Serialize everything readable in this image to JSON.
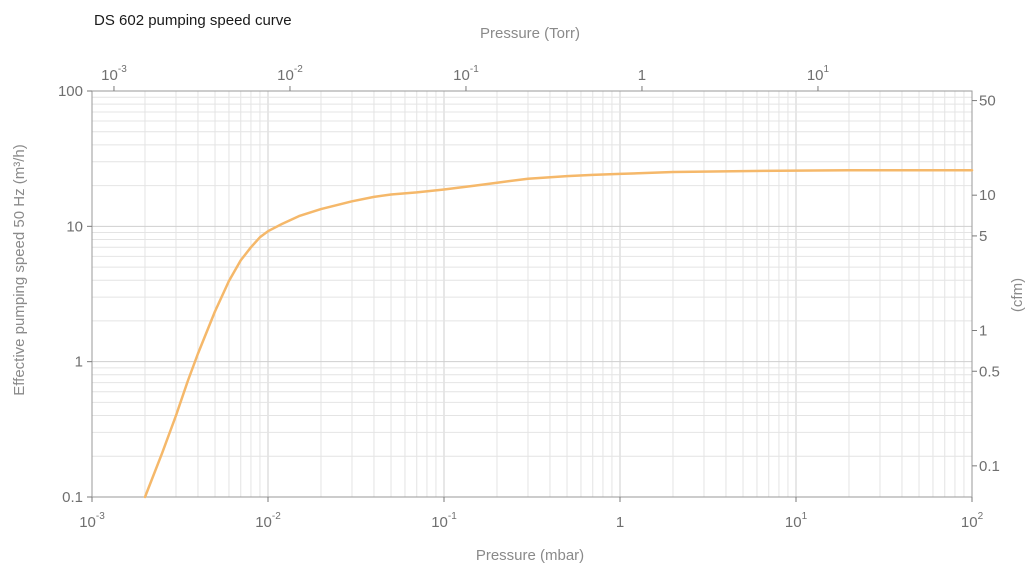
{
  "chart_data": {
    "type": "line",
    "title": "DS 602 pumping speed curve",
    "xlabel": "Pressure (mbar)",
    "x2label": "Pressure (Torr)",
    "ylabel": "Effective pumping speed  50 Hz (m³/h)",
    "y2label": "(cfm)",
    "xscale": "log",
    "yscale": "log",
    "xlim": [
      0.001,
      100
    ],
    "ylim": [
      0.1,
      100
    ],
    "grid": true,
    "x_ticks": [
      {
        "base": "10",
        "exp": "-3"
      },
      {
        "base": "10",
        "exp": "-2"
      },
      {
        "base": "10",
        "exp": "-1"
      },
      {
        "base": "1",
        "exp": ""
      },
      {
        "base": "10",
        "exp": "1"
      },
      {
        "base": "10",
        "exp": "2"
      }
    ],
    "x_tick_values": [
      0.001,
      0.01,
      0.1,
      1,
      10,
      100
    ],
    "x2_ticks": [
      {
        "base": "10",
        "exp": "-3"
      },
      {
        "base": "10",
        "exp": "-2"
      },
      {
        "base": "10",
        "exp": "-1"
      },
      {
        "base": "1",
        "exp": ""
      },
      {
        "base": "10",
        "exp": "1"
      }
    ],
    "x2_tick_values_mbar": [
      0.001333,
      0.01333,
      0.1333,
      1.333,
      13.33
    ],
    "y_ticks": [
      "0.1",
      "1",
      "10",
      "100"
    ],
    "y_tick_values": [
      0.1,
      1,
      10,
      100
    ],
    "y2_ticks": [
      "50",
      "10",
      "5",
      "1",
      "0.5",
      "0.1"
    ],
    "y2_tick_values_m3h": [
      84.95,
      16.99,
      8.495,
      1.699,
      0.8495,
      0.1699
    ],
    "series": [
      {
        "color": "#f5b86a",
        "x": [
          0.002,
          0.0025,
          0.003,
          0.0035,
          0.004,
          0.005,
          0.006,
          0.007,
          0.008,
          0.009,
          0.01,
          0.012,
          0.015,
          0.02,
          0.03,
          0.04,
          0.05,
          0.07,
          0.1,
          0.15,
          0.2,
          0.3,
          0.5,
          0.7,
          1,
          2,
          5,
          10,
          20,
          50,
          100
        ],
        "y": [
          0.1,
          0.21,
          0.4,
          0.72,
          1.15,
          2.35,
          3.95,
          5.6,
          7.0,
          8.3,
          9.2,
          10.4,
          11.9,
          13.4,
          15.3,
          16.5,
          17.2,
          17.8,
          18.7,
          20.0,
          21.0,
          22.5,
          23.5,
          24.0,
          24.4,
          25.2,
          25.6,
          25.8,
          26.0,
          26.0,
          26.0
        ]
      }
    ]
  }
}
